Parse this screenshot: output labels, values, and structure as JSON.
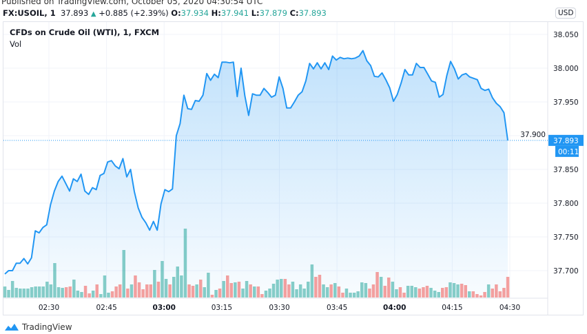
{
  "header": {
    "published": "Published on TradingView.com, October 05, 2020 04:30:54 UTC",
    "symbol": "FX:USOIL, 1",
    "last": "37.893",
    "change": "+0.885 (+2.39%)",
    "o_label": "O:",
    "o": "37.934",
    "h_label": "H:",
    "h": "37.941",
    "l_label": "L:",
    "l": "37.879",
    "c_label": "C:",
    "c": "37.893"
  },
  "chart_title": "CFDs on Crude Oil (WTI), 1, FXCM",
  "vol_label": "Vol",
  "currency_button": "USD",
  "footer_brand": "TradingView",
  "colors": {
    "line": "#2196f3",
    "up": "#26a69a",
    "down": "#ef5350",
    "grid": "#f0f3fa",
    "tag": "#2196f3"
  },
  "chart_data": {
    "type": "area",
    "grid": true,
    "x_ticks": [
      "02:30",
      "02:45",
      "03:00",
      "03:15",
      "03:30",
      "03:45",
      "04:00",
      "04:15",
      "04:30"
    ],
    "x_ticks_minutes": [
      150,
      165,
      180,
      195,
      210,
      225,
      240,
      255,
      270
    ],
    "bold_ticks": [
      "03:00",
      "04:00"
    ],
    "start_time": "02:19",
    "y_ticks": [
      "38.050",
      "38.000",
      "37.950",
      "37.900",
      "37.850",
      "37.800",
      "37.750",
      "37.700"
    ],
    "ylim": [
      37.665,
      38.05
    ],
    "last_price_tag": "37.893",
    "countdown": "00:11",
    "prices": [
      37.695,
      37.7,
      37.7,
      37.711,
      37.711,
      37.718,
      37.71,
      37.719,
      37.759,
      37.756,
      37.764,
      37.768,
      37.798,
      37.818,
      37.832,
      37.84,
      37.829,
      37.818,
      37.836,
      37.832,
      37.843,
      37.818,
      37.813,
      37.823,
      37.82,
      37.841,
      37.844,
      37.861,
      37.863,
      37.855,
      37.851,
      37.866,
      37.839,
      37.85,
      37.817,
      37.793,
      37.779,
      37.771,
      37.76,
      37.773,
      37.76,
      37.799,
      37.82,
      37.817,
      37.821,
      37.9,
      37.918,
      37.96,
      37.94,
      37.939,
      37.952,
      37.951,
      37.96,
      37.992,
      37.982,
      37.991,
      37.986,
      38.009,
      38.009,
      38.008,
      38.009,
      37.958,
      38.0,
      37.959,
      37.93,
      37.962,
      37.96,
      37.96,
      37.97,
      37.964,
      37.957,
      37.96,
      37.987,
      37.97,
      37.941,
      37.941,
      37.95,
      37.96,
      37.965,
      37.981,
      38.007,
      37.999,
      38.008,
      37.999,
      38.008,
      37.998,
      38.018,
      38.012,
      38.016,
      38.014,
      38.015,
      38.014,
      38.015,
      38.018,
      38.026,
      38.011,
      38.004,
      37.988,
      37.987,
      37.993,
      37.983,
      37.971,
      37.951,
      37.961,
      37.978,
      37.998,
      37.99,
      37.99,
      38.007,
      38.001,
      38.001,
      37.991,
      37.981,
      37.979,
      37.957,
      37.961,
      37.989,
      38.01,
      37.999,
      37.984,
      37.99,
      37.992,
      37.987,
      37.985,
      37.983,
      37.97,
      37.967,
      37.969,
      37.956,
      37.948,
      37.943,
      37.934,
      37.893
    ],
    "volumes": [
      16,
      11,
      24,
      14,
      13,
      13,
      13,
      15,
      16,
      16,
      16,
      23,
      19,
      50,
      15,
      14,
      15,
      16,
      26,
      10,
      8,
      17,
      6,
      10,
      19,
      5,
      32,
      7,
      9,
      16,
      19,
      69,
      13,
      19,
      32,
      22,
      12,
      19,
      19,
      40,
      23,
      53,
      27,
      19,
      30,
      45,
      32,
      100,
      19,
      17,
      19,
      26,
      15,
      36,
      4,
      11,
      13,
      24,
      32,
      21,
      22,
      23,
      13,
      24,
      19,
      16,
      16,
      5,
      10,
      13,
      20,
      26,
      27,
      27,
      19,
      23,
      12,
      19,
      13,
      23,
      48,
      30,
      33,
      19,
      15,
      19,
      21,
      16,
      7,
      13,
      7,
      7,
      9,
      22,
      21,
      13,
      19,
      37,
      30,
      17,
      29,
      23,
      12,
      15,
      7,
      17,
      17,
      15,
      13,
      15,
      17,
      14,
      10,
      8,
      14,
      15,
      22,
      21,
      19,
      20,
      18,
      9,
      9,
      5,
      3,
      8,
      19,
      13,
      19,
      9,
      14,
      30
    ],
    "volume_up": [
      1,
      1,
      1,
      1,
      1,
      1,
      1,
      1,
      1,
      1,
      1,
      1,
      1,
      1,
      1,
      1,
      0,
      0,
      1,
      1,
      1,
      0,
      0,
      1,
      0,
      1,
      1,
      1,
      0,
      0,
      0,
      1,
      0,
      1,
      0,
      0,
      0,
      0,
      0,
      1,
      0,
      1,
      1,
      0,
      1,
      1,
      1,
      1,
      0,
      0,
      1,
      0,
      1,
      1,
      0,
      1,
      0,
      1,
      0,
      0,
      1,
      0,
      1,
      1,
      0,
      1,
      0,
      0,
      1,
      1,
      1,
      1,
      1,
      0,
      0,
      1,
      1,
      1,
      1,
      1,
      1,
      0,
      0,
      1,
      1,
      0,
      1,
      0,
      0,
      1,
      1,
      1,
      1,
      1,
      1,
      0,
      0,
      0,
      1,
      0,
      0,
      1,
      1,
      0,
      0,
      1,
      1,
      1,
      0,
      0,
      0,
      1,
      1,
      1,
      0,
      0,
      1,
      1,
      1,
      0,
      0,
      1,
      0,
      0,
      0,
      0,
      1,
      0,
      0,
      0,
      0,
      0
    ]
  }
}
